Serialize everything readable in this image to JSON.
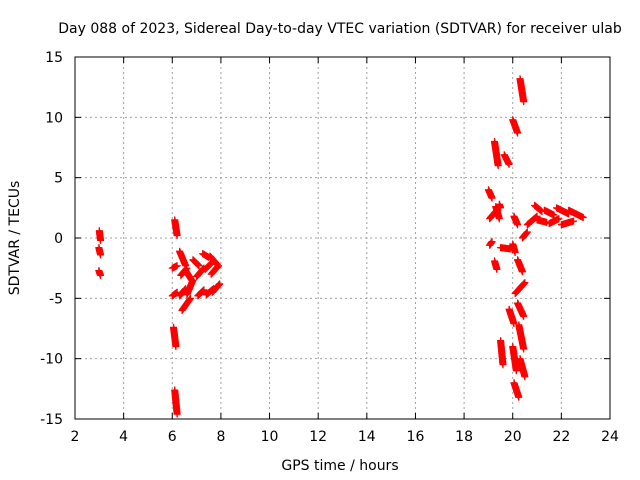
{
  "chart_data": {
    "type": "scatter",
    "title": "Day 088 of 2023, Sidereal Day-to-day VTEC variation (SDTVAR) for receiver ulab",
    "xlabel": "GPS time / hours",
    "ylabel": "SDTVAR / TECUs",
    "xlim": [
      2,
      24
    ],
    "ylim": [
      -15,
      15
    ],
    "xticks": [
      2,
      4,
      6,
      8,
      10,
      12,
      14,
      16,
      18,
      20,
      22,
      24
    ],
    "yticks": [
      -15,
      -10,
      -5,
      0,
      5,
      10,
      15
    ],
    "grid": true,
    "marker": "plus",
    "series": [
      {
        "name": "SDTVAR",
        "color": "#ff0000",
        "segments": [
          [
            [
              3.0,
              0.6
            ],
            [
              3.05,
              -0.2
            ]
          ],
          [
            [
              2.98,
              -0.8
            ],
            [
              3.05,
              -1.4
            ]
          ],
          [
            [
              2.98,
              -2.7
            ],
            [
              3.05,
              -3.1
            ]
          ],
          [
            [
              6.1,
              1.5
            ],
            [
              6.2,
              0.2
            ]
          ],
          [
            [
              6.05,
              -7.4
            ],
            [
              6.15,
              -9.0
            ]
          ],
          [
            [
              6.1,
              -12.6
            ],
            [
              6.2,
              -14.6
            ]
          ],
          [
            [
              6.0,
              -2.5
            ],
            [
              6.2,
              -2.3
            ]
          ],
          [
            [
              6.0,
              -4.8
            ],
            [
              6.2,
              -4.5
            ]
          ],
          [
            [
              6.3,
              -1.1
            ],
            [
              6.55,
              -2.3
            ]
          ],
          [
            [
              6.35,
              -3.1
            ],
            [
              6.6,
              -2.5
            ]
          ],
          [
            [
              6.3,
              -4.8
            ],
            [
              6.55,
              -4.2
            ]
          ],
          [
            [
              6.4,
              -6.0
            ],
            [
              6.75,
              -5.0
            ]
          ],
          [
            [
              6.55,
              -2.7
            ],
            [
              6.8,
              -3.5
            ]
          ],
          [
            [
              6.6,
              -4.7
            ],
            [
              6.85,
              -3.5
            ]
          ],
          [
            [
              6.85,
              -1.8
            ],
            [
              7.1,
              -2.3
            ]
          ],
          [
            [
              7.0,
              -3.2
            ],
            [
              7.3,
              -2.5
            ]
          ],
          [
            [
              7.05,
              -4.8
            ],
            [
              7.3,
              -4.3
            ]
          ],
          [
            [
              7.25,
              -1.3
            ],
            [
              7.5,
              -1.6
            ]
          ],
          [
            [
              7.35,
              -2.6
            ],
            [
              7.6,
              -2.1
            ]
          ],
          [
            [
              7.4,
              -4.7
            ],
            [
              7.7,
              -4.2
            ]
          ],
          [
            [
              7.55,
              -1.5
            ],
            [
              7.85,
              -2.2
            ]
          ],
          [
            [
              7.6,
              -3.0
            ],
            [
              7.9,
              -2.3
            ]
          ],
          [
            [
              7.65,
              -4.5
            ],
            [
              7.95,
              -3.8
            ]
          ],
          [
            [
              19.0,
              4.0
            ],
            [
              19.15,
              3.3
            ]
          ],
          [
            [
              19.05,
              1.6
            ],
            [
              19.3,
              2.2
            ]
          ],
          [
            [
              19.05,
              -0.6
            ],
            [
              19.15,
              -0.3
            ]
          ],
          [
            [
              19.25,
              8.0
            ],
            [
              19.4,
              6.0
            ]
          ],
          [
            [
              19.25,
              -1.9
            ],
            [
              19.35,
              -2.6
            ]
          ],
          [
            [
              19.3,
              2.6
            ],
            [
              19.45,
              1.6
            ]
          ],
          [
            [
              19.45,
              2.8
            ],
            [
              19.5,
              2.5
            ]
          ],
          [
            [
              19.5,
              -0.8
            ],
            [
              19.9,
              -0.9
            ]
          ],
          [
            [
              19.65,
              6.9
            ],
            [
              19.85,
              6.1
            ]
          ],
          [
            [
              19.5,
              -8.5
            ],
            [
              19.6,
              -10.5
            ]
          ],
          [
            [
              19.85,
              -5.9
            ],
            [
              20.05,
              -7.1
            ]
          ],
          [
            [
              20.0,
              9.8
            ],
            [
              20.2,
              8.7
            ]
          ],
          [
            [
              20.0,
              -0.5
            ],
            [
              20.1,
              -1.2
            ]
          ],
          [
            [
              20.05,
              1.8
            ],
            [
              20.2,
              1.1
            ]
          ],
          [
            [
              20.0,
              -9.0
            ],
            [
              20.15,
              -11.0
            ]
          ],
          [
            [
              20.05,
              -12.0
            ],
            [
              20.25,
              -13.2
            ]
          ],
          [
            [
              20.1,
              -4.6
            ],
            [
              20.5,
              -3.7
            ]
          ],
          [
            [
              20.2,
              -1.8
            ],
            [
              20.4,
              -2.8
            ]
          ],
          [
            [
              20.2,
              -5.4
            ],
            [
              20.45,
              -6.5
            ]
          ],
          [
            [
              20.3,
              13.2
            ],
            [
              20.45,
              11.3
            ]
          ],
          [
            [
              20.25,
              -7.2
            ],
            [
              20.45,
              -9.2
            ]
          ],
          [
            [
              20.3,
              -10.0
            ],
            [
              20.5,
              -11.5
            ]
          ],
          [
            [
              20.4,
              0.0
            ],
            [
              20.6,
              0.5
            ]
          ],
          [
            [
              20.6,
              1.1
            ],
            [
              21.0,
              1.8
            ]
          ],
          [
            [
              20.9,
              2.7
            ],
            [
              21.2,
              2.2
            ]
          ],
          [
            [
              21.0,
              1.5
            ],
            [
              21.4,
              1.3
            ]
          ],
          [
            [
              21.3,
              2.3
            ],
            [
              21.7,
              1.9
            ]
          ],
          [
            [
              21.5,
              1.2
            ],
            [
              21.9,
              1.6
            ]
          ],
          [
            [
              21.8,
              2.5
            ],
            [
              22.3,
              2.0
            ]
          ],
          [
            [
              22.0,
              1.1
            ],
            [
              22.5,
              1.4
            ]
          ],
          [
            [
              22.3,
              2.3
            ],
            [
              22.9,
              1.7
            ]
          ]
        ]
      }
    ]
  }
}
